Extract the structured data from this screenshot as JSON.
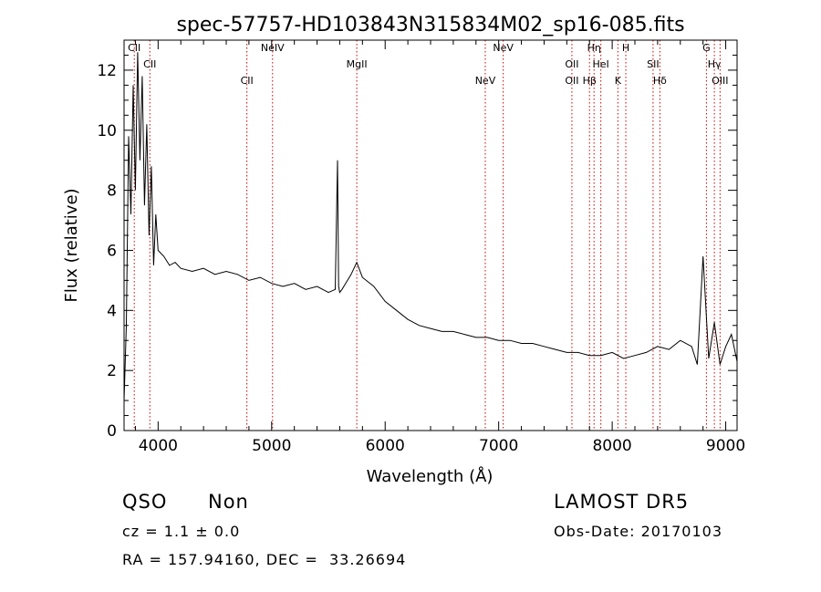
{
  "chart_data": {
    "type": "line",
    "title": "spec-57757-HD103843N315834M02_sp16-085.fits",
    "xlabel": "Wavelength (Å)",
    "ylabel": "Flux (relative)",
    "xlim": [
      3700,
      9100
    ],
    "ylim": [
      0,
      13
    ],
    "xticks": [
      4000,
      5000,
      6000,
      7000,
      8000,
      9000
    ],
    "yticks": [
      0,
      2,
      4,
      6,
      8,
      10,
      12
    ],
    "x_tick_labels": [
      "4000",
      "5000",
      "6000",
      "7000",
      "8000",
      "9000"
    ],
    "y_tick_labels": [
      "0",
      "2",
      "4",
      "6",
      "8",
      "10",
      "12"
    ],
    "grid": false,
    "series": [
      {
        "x": [
          3700,
          3720,
          3740,
          3760,
          3780,
          3800,
          3820,
          3840,
          3860,
          3880,
          3900,
          3920,
          3940,
          3960,
          3980,
          4000,
          4050,
          4100,
          4150,
          4200,
          4300,
          4400,
          4500,
          4600,
          4700,
          4800,
          4900,
          5000,
          5100,
          5200,
          5300,
          5400,
          5500,
          5560,
          5580,
          5590,
          5600,
          5620,
          5700,
          5750,
          5800,
          5900,
          6000,
          6100,
          6200,
          6300,
          6400,
          6500,
          6600,
          6700,
          6800,
          6900,
          7000,
          7100,
          7200,
          7300,
          7400,
          7500,
          7600,
          7700,
          7800,
          7900,
          8000,
          8100,
          8200,
          8300,
          8400,
          8500,
          8600,
          8700,
          8750,
          8800,
          8850,
          8900,
          8950,
          9000,
          9050,
          9100
        ],
        "y": [
          1.0,
          3.5,
          9.8,
          7.2,
          11.5,
          8.0,
          12.6,
          9.0,
          11.8,
          7.5,
          10.2,
          6.5,
          8.8,
          5.5,
          7.2,
          6.0,
          5.8,
          5.5,
          5.6,
          5.4,
          5.3,
          5.4,
          5.2,
          5.3,
          5.2,
          5.0,
          5.1,
          4.9,
          4.8,
          4.9,
          4.7,
          4.8,
          4.6,
          4.7,
          9.0,
          4.8,
          4.6,
          4.7,
          5.2,
          5.6,
          5.1,
          4.8,
          4.3,
          4.0,
          3.7,
          3.5,
          3.4,
          3.3,
          3.3,
          3.2,
          3.1,
          3.1,
          3.0,
          3.0,
          2.9,
          2.9,
          2.8,
          2.7,
          2.6,
          2.6,
          2.5,
          2.5,
          2.6,
          2.4,
          2.5,
          2.6,
          2.8,
          2.7,
          3.0,
          2.8,
          2.2,
          5.8,
          2.4,
          3.6,
          2.2,
          2.8,
          3.2,
          2.3
        ]
      }
    ],
    "lines": [
      {
        "x": 3790,
        "labels": [
          "CII"
        ]
      },
      {
        "x": 3927,
        "labels": [
          "CII"
        ]
      },
      {
        "x": 4782,
        "labels": [
          "CII"
        ]
      },
      {
        "x": 5008,
        "labels": [
          "NeIV"
        ]
      },
      {
        "x": 5750,
        "labels": [
          "MgII"
        ]
      },
      {
        "x": 6882,
        "labels": [
          "NeV"
        ]
      },
      {
        "x": 7040,
        "labels": [
          "NeV"
        ]
      },
      {
        "x": 7645,
        "labels": [
          "OII",
          "OII"
        ]
      },
      {
        "x": 7800,
        "labels": [
          "Hβ"
        ]
      },
      {
        "x": 7840,
        "labels": [
          "Hη"
        ]
      },
      {
        "x": 7900,
        "labels": [
          "HeI"
        ]
      },
      {
        "x": 8050,
        "labels": [
          "K"
        ]
      },
      {
        "x": 8120,
        "labels": [
          "H"
        ]
      },
      {
        "x": 8360,
        "labels": [
          "SII"
        ]
      },
      {
        "x": 8420,
        "labels": [
          "Hδ"
        ]
      },
      {
        "x": 8830,
        "labels": [
          "G"
        ]
      },
      {
        "x": 8900,
        "labels": [
          "Hγ"
        ]
      },
      {
        "x": 8950,
        "labels": [
          "OIII"
        ]
      }
    ]
  },
  "info": {
    "class": "QSO",
    "subclass": "Non",
    "cz": "cz = 1.1 ± 0.0",
    "coords": "RA = 157.94160, DEC =  33.26694",
    "survey": "LAMOST DR5",
    "obsdate": "Obs-Date: 20170103"
  }
}
